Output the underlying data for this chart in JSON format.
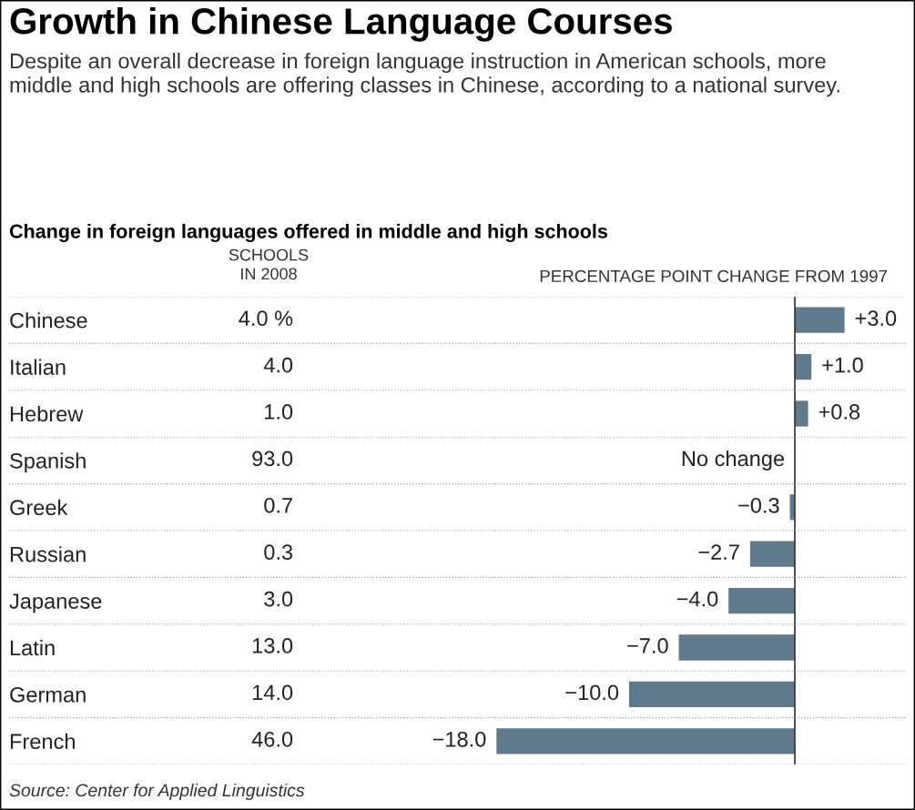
{
  "chart_data": {
    "type": "bar",
    "orientation": "horizontal",
    "title": "Growth in Chinese Language Courses",
    "subtitle": "Despite an overall decrease in foreign language instruction in American schools, more middle and high schools are offering classes in Chinese, according to a national survey.",
    "xlabel": "PERCENTAGE POINT CHANGE FROM 1997",
    "categories": [
      "Chinese",
      "Italian",
      "Hebrew",
      "Spanish",
      "Greek",
      "Russian",
      "Japanese",
      "Latin",
      "German",
      "French"
    ],
    "values": [
      3.0,
      1.0,
      0.8,
      0,
      -0.3,
      -2.7,
      -4.0,
      -7.0,
      -10.0,
      -18.0
    ],
    "value_labels": [
      "+3.0",
      "+1.0",
      "+0.8",
      "No change",
      "−0.3",
      "−2.7",
      "−4.0",
      "−7.0",
      "−10.0",
      "−18.0"
    ],
    "color": "#5f7a8c",
    "xlim": [
      -47.4,
      6.7
    ],
    "tick_labels": "y",
    "annotations": [
      "Change in foreign languages offered in middle and high schools",
      "SCHOOLS\nIN 2008",
      "4.0 %",
      "4.0",
      "1.0",
      "93.0",
      "0.7",
      "0.3",
      "3.0",
      "13.0",
      "14.0",
      "46.0",
      "Source: Center for Applied Linguistics"
    ]
  }
}
